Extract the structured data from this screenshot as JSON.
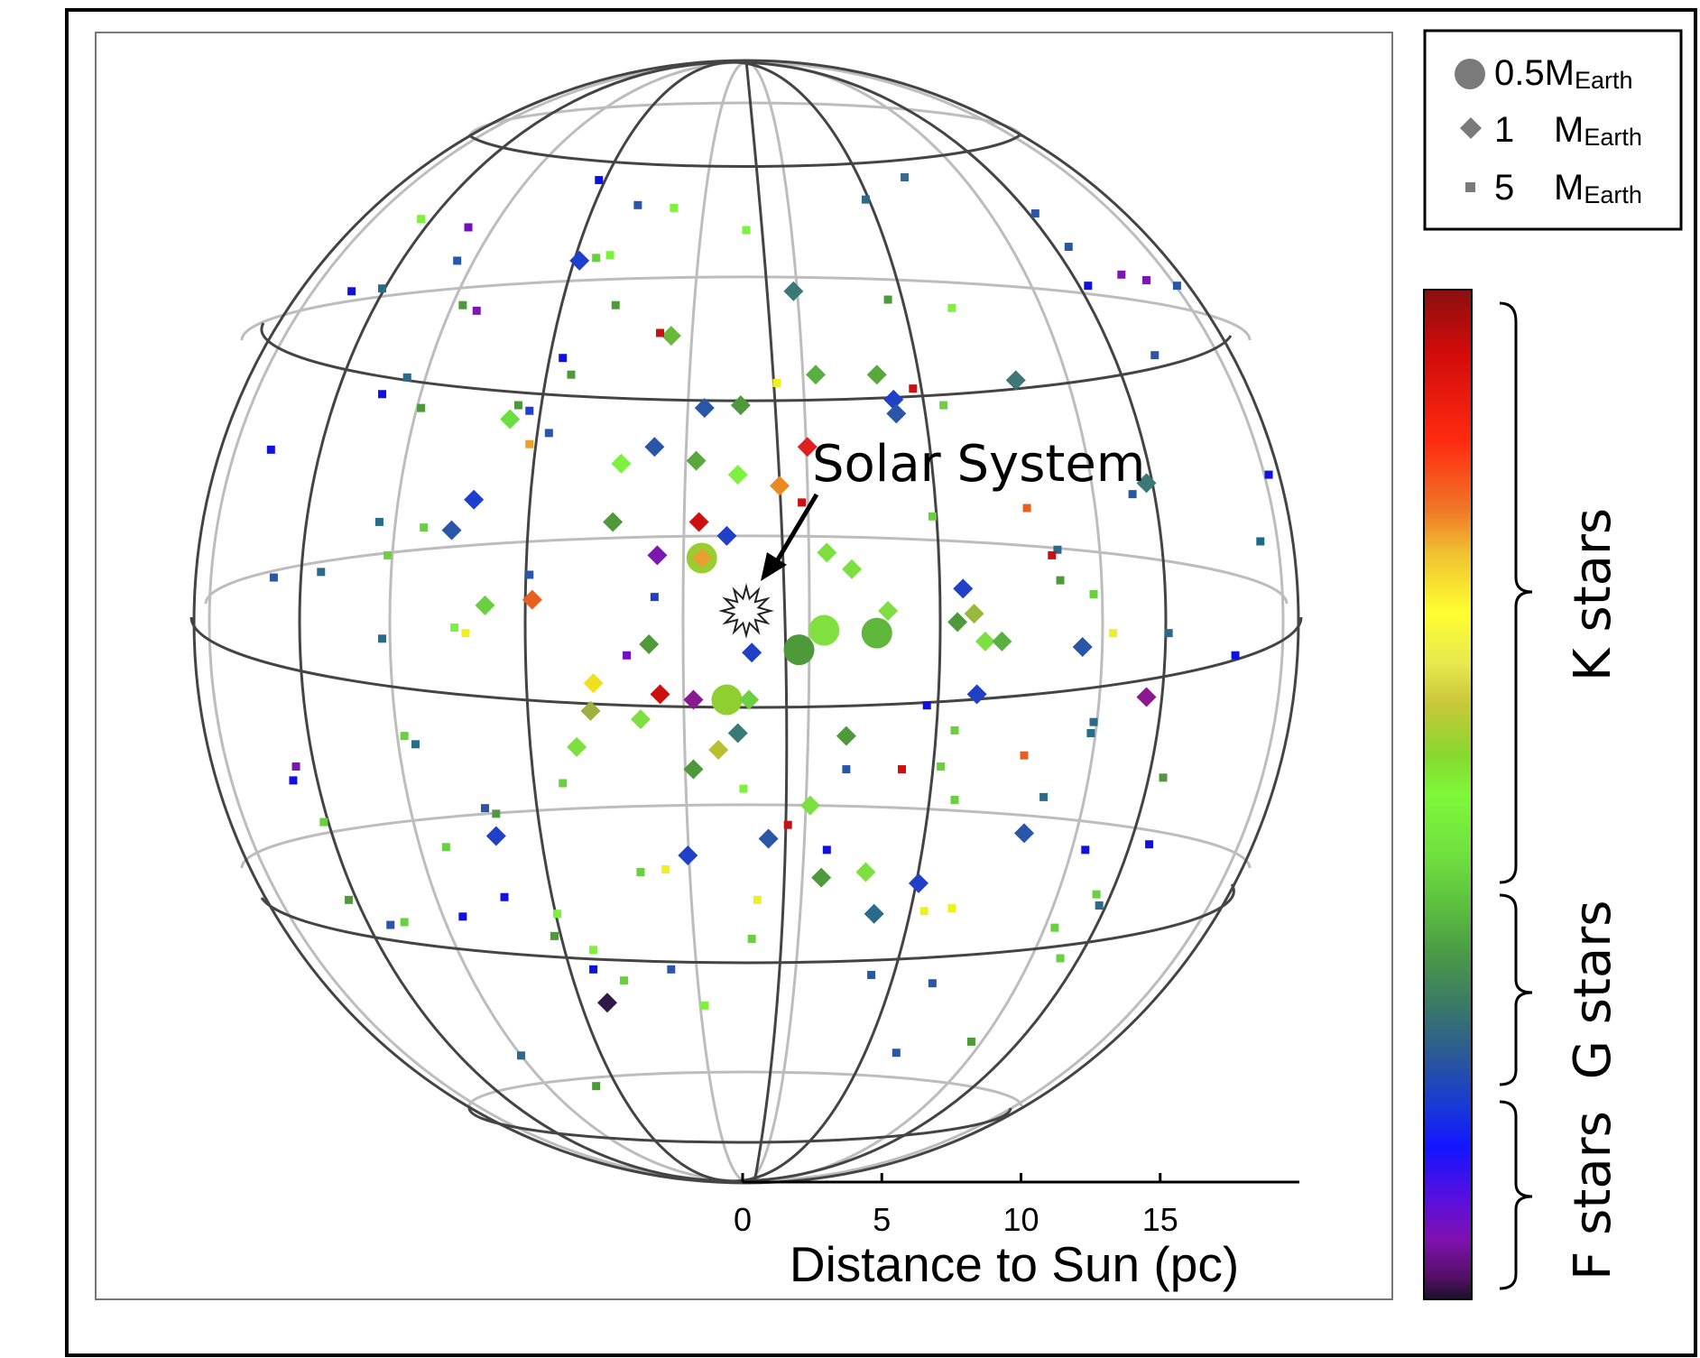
{
  "chart_data": {
    "type": "scatter",
    "annotation": "Solar System",
    "scale_bar": {
      "label": "Distance to Sun (pc)",
      "ticks": [
        0,
        5,
        10,
        15
      ],
      "max": 20
    },
    "legend": {
      "entries": [
        {
          "shape": "circle",
          "value": "0.5",
          "unit": "M",
          "sub": "Earth"
        },
        {
          "shape": "diamond",
          "value": "1",
          "unit": "M",
          "sub": "Earth"
        },
        {
          "shape": "square",
          "value": "5",
          "unit": "M",
          "sub": "Earth"
        }
      ]
    },
    "colorbar": {
      "labels": [
        "K stars",
        "G stars",
        "F stars"
      ]
    },
    "circle_points": [
      {
        "x": -1.6,
        "y": 1.9,
        "c": "#9acd32"
      },
      {
        "x": -0.7,
        "y": -3.2,
        "c": "#8fd030"
      },
      {
        "x": 1.9,
        "y": -1.4,
        "c": "#4e9a3a"
      },
      {
        "x": 2.8,
        "y": -0.7,
        "c": "#7fe040"
      },
      {
        "x": 4.7,
        "y": -0.8,
        "c": "#5fb83c"
      }
    ],
    "diamond_points": [
      {
        "x": -6.0,
        "y": 12.6,
        "c": "#1c3fd0"
      },
      {
        "x": 1.7,
        "y": 11.5,
        "c": "#3a7a76"
      },
      {
        "x": -2.7,
        "y": 9.9,
        "c": "#6ab83a"
      },
      {
        "x": 2.5,
        "y": 8.5,
        "c": "#58b040"
      },
      {
        "x": 4.7,
        "y": 8.5,
        "c": "#58a83a"
      },
      {
        "x": 9.7,
        "y": 8.3,
        "c": "#3d7876"
      },
      {
        "x": -8.5,
        "y": 6.9,
        "c": "#6ae040"
      },
      {
        "x": -1.5,
        "y": 7.3,
        "c": "#2a56a8"
      },
      {
        "x": -0.2,
        "y": 7.4,
        "c": "#4e9a3a"
      },
      {
        "x": 5.3,
        "y": 7.6,
        "c": "#2040c8"
      },
      {
        "x": 5.4,
        "y": 7.1,
        "c": "#2a56a8"
      },
      {
        "x": -3.3,
        "y": 5.9,
        "c": "#2a56a8"
      },
      {
        "x": -4.5,
        "y": 5.3,
        "c": "#7ef040"
      },
      {
        "x": -1.8,
        "y": 5.4,
        "c": "#58a83a"
      },
      {
        "x": -0.3,
        "y": 4.9,
        "c": "#7ef040"
      },
      {
        "x": 1.2,
        "y": 4.5,
        "c": "#e88a20"
      },
      {
        "x": 2.2,
        "y": 5.9,
        "c": "#e02020"
      },
      {
        "x": 14.4,
        "y": 4.6,
        "c": "#3a7a76"
      },
      {
        "x": -9.8,
        "y": 4.0,
        "c": "#1c3fd0"
      },
      {
        "x": -10.6,
        "y": 2.9,
        "c": "#2a56a8"
      },
      {
        "x": -4.8,
        "y": 3.2,
        "c": "#4e9a3a"
      },
      {
        "x": -1.7,
        "y": 3.2,
        "c": "#cc1010"
      },
      {
        "x": -0.7,
        "y": 2.7,
        "c": "#2040c8"
      },
      {
        "x": -3.2,
        "y": 2.0,
        "c": "#7a18b0"
      },
      {
        "x": -1.6,
        "y": 1.9,
        "c": "#e8a030"
      },
      {
        "x": 2.9,
        "y": 2.1,
        "c": "#7ee040"
      },
      {
        "x": 3.8,
        "y": 1.5,
        "c": "#7ee040"
      },
      {
        "x": 7.8,
        "y": 0.8,
        "c": "#2040c8"
      },
      {
        "x": -7.7,
        "y": 0.4,
        "c": "#e86020"
      },
      {
        "x": -9.4,
        "y": 0.2,
        "c": "#6ad040"
      },
      {
        "x": 5.1,
        "y": 0.0,
        "c": "#7ee040"
      },
      {
        "x": 8.2,
        "y": -0.1,
        "c": "#9ab83a"
      },
      {
        "x": 7.6,
        "y": -0.4,
        "c": "#4e9a3a"
      },
      {
        "x": -3.5,
        "y": -1.2,
        "c": "#4e9a3a"
      },
      {
        "x": 0.2,
        "y": -1.5,
        "c": "#2040c8"
      },
      {
        "x": 8.6,
        "y": -1.1,
        "c": "#7ee040"
      },
      {
        "x": 9.2,
        "y": -1.1,
        "c": "#58b040"
      },
      {
        "x": 12.1,
        "y": -1.3,
        "c": "#2a56a8"
      },
      {
        "x": -5.5,
        "y": -2.6,
        "c": "#f0e020"
      },
      {
        "x": -3.1,
        "y": -3.0,
        "c": "#cc1010"
      },
      {
        "x": -1.9,
        "y": -3.2,
        "c": "#8a1890"
      },
      {
        "x": 0.1,
        "y": -3.2,
        "c": "#6ad040"
      },
      {
        "x": 8.3,
        "y": -3.0,
        "c": "#2040c8"
      },
      {
        "x": 14.4,
        "y": -3.1,
        "c": "#8a1890"
      },
      {
        "x": -5.6,
        "y": -3.6,
        "c": "#a0b040"
      },
      {
        "x": -3.8,
        "y": -3.9,
        "c": "#7ee040"
      },
      {
        "x": -0.3,
        "y": -4.4,
        "c": "#3a7a76"
      },
      {
        "x": 3.6,
        "y": -4.5,
        "c": "#4e9a3a"
      },
      {
        "x": -6.1,
        "y": -4.9,
        "c": "#7ee040"
      },
      {
        "x": -1.0,
        "y": -5.0,
        "c": "#b8c030"
      },
      {
        "x": -1.9,
        "y": -5.7,
        "c": "#4e9a3a"
      },
      {
        "x": 2.3,
        "y": -7.0,
        "c": "#7ee040"
      },
      {
        "x": -9.0,
        "y": -8.1,
        "c": "#2040c8"
      },
      {
        "x": 0.8,
        "y": -8.2,
        "c": "#2a56a8"
      },
      {
        "x": -2.1,
        "y": -8.8,
        "c": "#2040c8"
      },
      {
        "x": 10.0,
        "y": -8.0,
        "c": "#2a56a8"
      },
      {
        "x": 2.7,
        "y": -9.6,
        "c": "#4e9a3a"
      },
      {
        "x": 4.3,
        "y": -9.4,
        "c": "#7ee040"
      },
      {
        "x": 6.2,
        "y": -9.8,
        "c": "#2040c8"
      },
      {
        "x": 4.6,
        "y": -10.9,
        "c": "#2a6a8a"
      },
      {
        "x": -5.0,
        "y": -14.1,
        "c": "#301848"
      }
    ],
    "square_points": [
      {
        "x": -5.3,
        "y": 15.5,
        "c": "#1010e0"
      },
      {
        "x": 5.7,
        "y": 15.6,
        "c": "#3a6a8a"
      },
      {
        "x": -3.9,
        "y": 14.6,
        "c": "#2a56a8"
      },
      {
        "x": -2.6,
        "y": 14.5,
        "c": "#7ef040"
      },
      {
        "x": 4.3,
        "y": 14.8,
        "c": "#2a6a8a"
      },
      {
        "x": 10.4,
        "y": 14.3,
        "c": "#2a56a8"
      },
      {
        "x": -11.7,
        "y": 14.1,
        "c": "#7ef040"
      },
      {
        "x": -10.0,
        "y": 13.8,
        "c": "#7010c0"
      },
      {
        "x": 0.0,
        "y": 13.7,
        "c": "#7ef040"
      },
      {
        "x": 11.6,
        "y": 13.1,
        "c": "#2a56a8"
      },
      {
        "x": -10.4,
        "y": 12.6,
        "c": "#2a56a8"
      },
      {
        "x": -5.4,
        "y": 12.7,
        "c": "#6ad040"
      },
      {
        "x": -4.9,
        "y": 12.8,
        "c": "#7ef040"
      },
      {
        "x": 13.5,
        "y": 12.1,
        "c": "#7a18b0"
      },
      {
        "x": -14.2,
        "y": 11.5,
        "c": "#1010e0"
      },
      {
        "x": -13.1,
        "y": 11.6,
        "c": "#2a6a8a"
      },
      {
        "x": 12.3,
        "y": 11.7,
        "c": "#1010e0"
      },
      {
        "x": 15.5,
        "y": 11.7,
        "c": "#2a56a8"
      },
      {
        "x": -10.2,
        "y": 11.0,
        "c": "#4e9a3a"
      },
      {
        "x": -9.7,
        "y": 10.8,
        "c": "#7a18b0"
      },
      {
        "x": -4.7,
        "y": 11.0,
        "c": "#4e9a3a"
      },
      {
        "x": 5.1,
        "y": 11.2,
        "c": "#4e9a3a"
      },
      {
        "x": 7.4,
        "y": 10.9,
        "c": "#7ef040"
      },
      {
        "x": -3.1,
        "y": 10.0,
        "c": "#cc1010"
      },
      {
        "x": -6.6,
        "y": 9.1,
        "c": "#1010e0"
      },
      {
        "x": 14.7,
        "y": 9.2,
        "c": "#2a56a8"
      },
      {
        "x": -12.2,
        "y": 8.4,
        "c": "#2a6a8a"
      },
      {
        "x": -6.3,
        "y": 8.5,
        "c": "#4e9a3a"
      },
      {
        "x": 1.1,
        "y": 8.2,
        "c": "#f0f020"
      },
      {
        "x": 6.0,
        "y": 8.0,
        "c": "#cc1010"
      },
      {
        "x": -13.1,
        "y": 7.8,
        "c": "#1010e0"
      },
      {
        "x": -11.7,
        "y": 7.3,
        "c": "#4e9a3a"
      },
      {
        "x": -8.2,
        "y": 7.4,
        "c": "#4e9a3a"
      },
      {
        "x": -7.8,
        "y": 7.2,
        "c": "#2040c8"
      },
      {
        "x": 7.1,
        "y": 7.4,
        "c": "#6ad040"
      },
      {
        "x": -7.1,
        "y": 6.4,
        "c": "#2a56a8"
      },
      {
        "x": -7.8,
        "y": 6.0,
        "c": "#e8a030"
      },
      {
        "x": -17.1,
        "y": 5.8,
        "c": "#1010e0"
      },
      {
        "x": 18.8,
        "y": 4.9,
        "c": "#1010e0"
      },
      {
        "x": 13.9,
        "y": 4.2,
        "c": "#2a56a8"
      },
      {
        "x": 2.0,
        "y": 3.9,
        "c": "#cc1010"
      },
      {
        "x": 10.1,
        "y": 3.7,
        "c": "#e86020"
      },
      {
        "x": 6.7,
        "y": 3.4,
        "c": "#6ad040"
      },
      {
        "x": -13.2,
        "y": 3.2,
        "c": "#2a6a8a"
      },
      {
        "x": -11.6,
        "y": 3.0,
        "c": "#6ad040"
      },
      {
        "x": 18.5,
        "y": 2.5,
        "c": "#1c6a8a"
      },
      {
        "x": 11.2,
        "y": 2.2,
        "c": "#2a6a8a"
      },
      {
        "x": 11.0,
        "y": 2.0,
        "c": "#cc1010"
      },
      {
        "x": -12.9,
        "y": 2.0,
        "c": "#6ad040"
      },
      {
        "x": -15.3,
        "y": 1.4,
        "c": "#2a6a8a"
      },
      {
        "x": -17.0,
        "y": 1.2,
        "c": "#2a56a8"
      },
      {
        "x": -7.8,
        "y": 1.3,
        "c": "#2a56a8"
      },
      {
        "x": 11.3,
        "y": 1.1,
        "c": "#4e9a3a"
      },
      {
        "x": 12.5,
        "y": 0.6,
        "c": "#6ad040"
      },
      {
        "x": -3.3,
        "y": 0.5,
        "c": "#2040c8"
      },
      {
        "x": -10.5,
        "y": -0.6,
        "c": "#7ef040"
      },
      {
        "x": -10.1,
        "y": -0.8,
        "c": "#f0f020"
      },
      {
        "x": -13.1,
        "y": -1.0,
        "c": "#2a6a8a"
      },
      {
        "x": 13.2,
        "y": -0.8,
        "c": "#f0f020"
      },
      {
        "x": 15.2,
        "y": -0.8,
        "c": "#2a6a8a"
      },
      {
        "x": -4.3,
        "y": -1.6,
        "c": "#7010c0"
      },
      {
        "x": 17.6,
        "y": -1.6,
        "c": "#1010e0"
      },
      {
        "x": 6.5,
        "y": -3.4,
        "c": "#1010e0"
      },
      {
        "x": 12.5,
        "y": -4.0,
        "c": "#2a6a8a"
      },
      {
        "x": 7.5,
        "y": -4.3,
        "c": "#6ad040"
      },
      {
        "x": 12.4,
        "y": -4.4,
        "c": "#2a6a8a"
      },
      {
        "x": -12.3,
        "y": -4.5,
        "c": "#6ad040"
      },
      {
        "x": -11.9,
        "y": -4.8,
        "c": "#2a6a8a"
      },
      {
        "x": -16.2,
        "y": -5.6,
        "c": "#7a18b0"
      },
      {
        "x": 10.0,
        "y": -5.2,
        "c": "#e86020"
      },
      {
        "x": 7.0,
        "y": -5.6,
        "c": "#6ad040"
      },
      {
        "x": 3.6,
        "y": -5.7,
        "c": "#2a56a8"
      },
      {
        "x": 5.6,
        "y": -5.7,
        "c": "#cc1010"
      },
      {
        "x": -16.3,
        "y": -6.1,
        "c": "#1010e0"
      },
      {
        "x": 15.0,
        "y": -6.0,
        "c": "#4e9a3a"
      },
      {
        "x": -6.6,
        "y": -6.2,
        "c": "#6ad040"
      },
      {
        "x": -0.1,
        "y": -6.4,
        "c": "#7ef040"
      },
      {
        "x": 10.7,
        "y": -6.7,
        "c": "#2a6a8a"
      },
      {
        "x": 7.5,
        "y": -6.8,
        "c": "#6ad040"
      },
      {
        "x": -9.4,
        "y": -7.1,
        "c": "#2a56a8"
      },
      {
        "x": -9.0,
        "y": -7.3,
        "c": "#4e9a3a"
      },
      {
        "x": -15.2,
        "y": -7.6,
        "c": "#6ad040"
      },
      {
        "x": 1.5,
        "y": -7.7,
        "c": "#cc1010"
      },
      {
        "x": -10.8,
        "y": -8.5,
        "c": "#6ad040"
      },
      {
        "x": 2.9,
        "y": -8.6,
        "c": "#1010e0"
      },
      {
        "x": 12.2,
        "y": -8.6,
        "c": "#1010e0"
      },
      {
        "x": 14.5,
        "y": -8.4,
        "c": "#1010e0"
      },
      {
        "x": -3.8,
        "y": -9.4,
        "c": "#6ad040"
      },
      {
        "x": -2.9,
        "y": -9.3,
        "c": "#f0f020"
      },
      {
        "x": 12.6,
        "y": -10.2,
        "c": "#6ad040"
      },
      {
        "x": -14.3,
        "y": -10.4,
        "c": "#4e9a3a"
      },
      {
        "x": -8.7,
        "y": -10.3,
        "c": "#1010e0"
      },
      {
        "x": 0.4,
        "y": -10.4,
        "c": "#f0f020"
      },
      {
        "x": 12.7,
        "y": -10.6,
        "c": "#2a6a8a"
      },
      {
        "x": -6.8,
        "y": -10.9,
        "c": "#7ef040"
      },
      {
        "x": 6.4,
        "y": -10.8,
        "c": "#f0f020"
      },
      {
        "x": 7.4,
        "y": -10.7,
        "c": "#f0f020"
      },
      {
        "x": -12.8,
        "y": -11.3,
        "c": "#2a56a8"
      },
      {
        "x": -12.3,
        "y": -11.2,
        "c": "#6ad040"
      },
      {
        "x": -10.2,
        "y": -11.0,
        "c": "#1010e0"
      },
      {
        "x": -6.9,
        "y": -11.7,
        "c": "#4e9a3a"
      },
      {
        "x": 11.1,
        "y": -11.4,
        "c": "#6ad040"
      },
      {
        "x": 0.2,
        "y": -11.8,
        "c": "#6ad040"
      },
      {
        "x": -5.5,
        "y": -12.2,
        "c": "#7ef040"
      },
      {
        "x": 11.3,
        "y": -12.5,
        "c": "#6ad040"
      },
      {
        "x": -5.5,
        "y": -12.9,
        "c": "#1010e0"
      },
      {
        "x": -2.7,
        "y": -12.9,
        "c": "#2a56a8"
      },
      {
        "x": 4.5,
        "y": -13.1,
        "c": "#2a56a8"
      },
      {
        "x": -4.4,
        "y": -13.3,
        "c": "#6ad040"
      },
      {
        "x": 6.7,
        "y": -13.4,
        "c": "#2a56a8"
      },
      {
        "x": -1.5,
        "y": -14.2,
        "c": "#7ef040"
      },
      {
        "x": 8.1,
        "y": -15.5,
        "c": "#4e9a3a"
      },
      {
        "x": 5.4,
        "y": -15.9,
        "c": "#2a56a8"
      },
      {
        "x": -8.1,
        "y": -16.0,
        "c": "#2a6a8a"
      },
      {
        "x": -5.4,
        "y": -17.1,
        "c": "#4e9a3a"
      },
      {
        "x": 14.4,
        "y": 11.9,
        "c": "#7a18b0"
      }
    ]
  }
}
